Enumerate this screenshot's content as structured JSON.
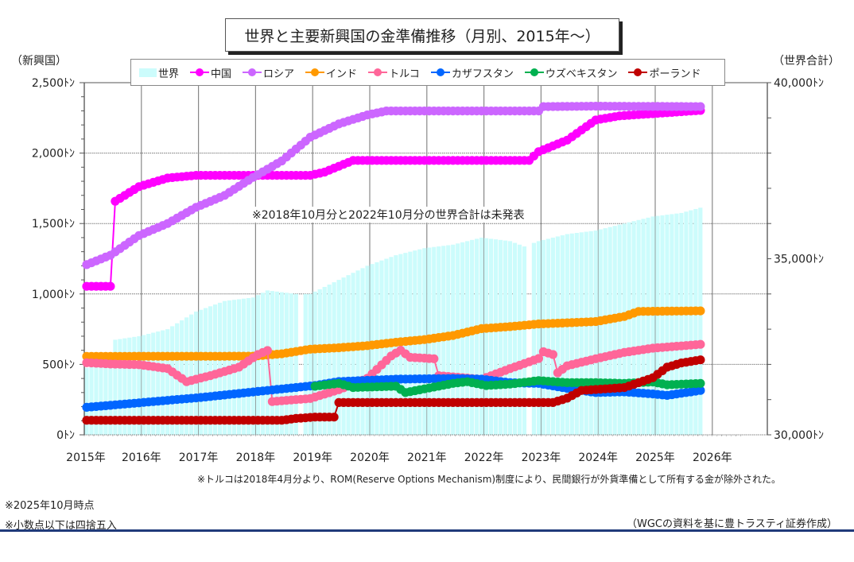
{
  "title": "世界と主要新興国の金準備推移（月別、2015年～）",
  "axis_caption_left": "（新興国）",
  "axis_caption_right": "（世界合計）",
  "annotation_gap": "※2018年10月分と2022年10月分の世界合計は未発表",
  "footnote_turkey": "※トルコは2018年4月分より、ROM(Reserve Options Mechanism)制度により、民間銀行が外貨準備として所有する金が除外された。",
  "footnote_date": "※2025年10月時点",
  "footnote_rounding": "※小数点以下は四捨五入",
  "source": "（WGCの資料を基に豊トラスティ証券作成）",
  "chart_data": {
    "type": "line",
    "title": "世界と主要新興国の金準備推移（月別、2015年～）",
    "xlabel": "",
    "ylabel": "（新興国）",
    "ylabel_right": "（世界合計）",
    "x_start": "2015-01",
    "x_end": "2025-10",
    "x_ticks": [
      "2015年",
      "2016年",
      "2017年",
      "2018年",
      "2019年",
      "2020年",
      "2021年",
      "2022年",
      "2023年",
      "2024年",
      "2025年",
      "2026年"
    ],
    "ylim": [
      0,
      2500
    ],
    "y_ticks": [
      "0ﾄﾝ",
      "500ﾄﾝ",
      "1,000ﾄﾝ",
      "1,500ﾄﾝ",
      "2,000ﾄﾝ",
      "2,500ﾄﾝ"
    ],
    "ylim_right": [
      30000,
      40000
    ],
    "y_ticks_right": [
      "30,000ﾄﾝ",
      "35,000ﾄﾝ",
      "40,000ﾄﾝ"
    ],
    "grid": true,
    "legend_position": "top",
    "world": {
      "name": "世界",
      "color": "#ccfcfc",
      "axis": "right",
      "type": "bar",
      "missing": [
        "2018-10",
        "2022-10"
      ],
      "keypoints": [
        [
          "2015-01",
          31900
        ],
        [
          "2015-06",
          32000
        ],
        [
          "2015-07",
          32700
        ],
        [
          "2015-12",
          32800
        ],
        [
          "2016-06",
          33000
        ],
        [
          "2016-12",
          33500
        ],
        [
          "2017-06",
          33800
        ],
        [
          "2017-12",
          33900
        ],
        [
          "2018-03",
          34100
        ],
        [
          "2018-09",
          34000
        ],
        [
          "2018-12",
          34000
        ],
        [
          "2019-06",
          34400
        ],
        [
          "2019-12",
          34800
        ],
        [
          "2020-06",
          35100
        ],
        [
          "2020-12",
          35300
        ],
        [
          "2021-06",
          35400
        ],
        [
          "2021-12",
          35600
        ],
        [
          "2022-06",
          35500
        ],
        [
          "2022-09",
          35350
        ],
        [
          "2022-12",
          35500
        ],
        [
          "2023-06",
          35700
        ],
        [
          "2023-12",
          35800
        ],
        [
          "2024-06",
          36000
        ],
        [
          "2024-12",
          36200
        ],
        [
          "2025-06",
          36300
        ],
        [
          "2025-10",
          36450
        ]
      ]
    },
    "series": [
      {
        "name": "中国",
        "color": "#ff00ff",
        "keypoints": [
          [
            "2015-01",
            1054
          ],
          [
            "2015-06",
            1054
          ],
          [
            "2015-07",
            1658
          ],
          [
            "2015-12",
            1762
          ],
          [
            "2016-06",
            1823
          ],
          [
            "2016-12",
            1842
          ],
          [
            "2018-12",
            1842
          ],
          [
            "2019-03",
            1865
          ],
          [
            "2019-09",
            1948
          ],
          [
            "2022-10",
            1948
          ],
          [
            "2022-12",
            2010
          ],
          [
            "2023-06",
            2092
          ],
          [
            "2023-12",
            2235
          ],
          [
            "2024-05",
            2264
          ],
          [
            "2024-12",
            2280
          ],
          [
            "2025-10",
            2303
          ]
        ]
      },
      {
        "name": "ロシア",
        "color": "#cc66ff",
        "keypoints": [
          [
            "2015-01",
            1208
          ],
          [
            "2015-06",
            1275
          ],
          [
            "2015-12",
            1415
          ],
          [
            "2016-06",
            1500
          ],
          [
            "2016-12",
            1615
          ],
          [
            "2017-06",
            1700
          ],
          [
            "2017-12",
            1828
          ],
          [
            "2018-06",
            1944
          ],
          [
            "2018-12",
            2113
          ],
          [
            "2019-06",
            2207
          ],
          [
            "2019-12",
            2271
          ],
          [
            "2020-04",
            2299
          ],
          [
            "2022-12",
            2299
          ],
          [
            "2023-01",
            2330
          ],
          [
            "2023-12",
            2333
          ],
          [
            "2025-10",
            2330
          ]
        ]
      },
      {
        "name": "インド",
        "color": "#ff9900",
        "keypoints": [
          [
            "2015-01",
            557
          ],
          [
            "2017-12",
            558
          ],
          [
            "2018-06",
            575
          ],
          [
            "2018-12",
            608
          ],
          [
            "2019-06",
            618
          ],
          [
            "2019-12",
            633
          ],
          [
            "2020-06",
            657
          ],
          [
            "2020-12",
            676
          ],
          [
            "2021-06",
            705
          ],
          [
            "2021-12",
            754
          ],
          [
            "2022-06",
            768
          ],
          [
            "2022-12",
            787
          ],
          [
            "2023-06",
            795
          ],
          [
            "2023-12",
            804
          ],
          [
            "2024-06",
            840
          ],
          [
            "2024-09",
            876
          ],
          [
            "2025-10",
            880
          ]
        ]
      },
      {
        "name": "トルコ",
        "color": "#ff6699",
        "keypoints": [
          [
            "2015-01",
            512
          ],
          [
            "2015-06",
            503
          ],
          [
            "2015-12",
            498
          ],
          [
            "2016-06",
            470
          ],
          [
            "2016-10",
            377
          ],
          [
            "2017-03",
            420
          ],
          [
            "2017-09",
            480
          ],
          [
            "2018-01",
            570
          ],
          [
            "2018-03",
            598
          ],
          [
            "2018-04",
            236
          ],
          [
            "2018-12",
            258
          ],
          [
            "2019-06",
            320
          ],
          [
            "2019-12",
            401
          ],
          [
            "2020-05",
            560
          ],
          [
            "2020-07",
            600
          ],
          [
            "2020-09",
            550
          ],
          [
            "2021-02",
            540
          ],
          [
            "2021-03",
            420
          ],
          [
            "2021-12",
            394
          ],
          [
            "2022-06",
            470
          ],
          [
            "2022-12",
            542
          ],
          [
            "2023-01",
            590
          ],
          [
            "2023-03",
            570
          ],
          [
            "2023-04",
            440
          ],
          [
            "2023-06",
            490
          ],
          [
            "2023-12",
            540
          ],
          [
            "2024-06",
            585
          ],
          [
            "2024-12",
            615
          ],
          [
            "2025-10",
            642
          ]
        ]
      },
      {
        "name": "カザフスタン",
        "color": "#0066ff",
        "keypoints": [
          [
            "2015-01",
            195
          ],
          [
            "2016-01",
            230
          ],
          [
            "2017-01",
            265
          ],
          [
            "2018-01",
            308
          ],
          [
            "2019-01",
            350
          ],
          [
            "2019-06",
            378
          ],
          [
            "2020-06",
            395
          ],
          [
            "2021-06",
            400
          ],
          [
            "2021-12",
            395
          ],
          [
            "2022-06",
            370
          ],
          [
            "2022-12",
            365
          ],
          [
            "2023-06",
            330
          ],
          [
            "2023-12",
            300
          ],
          [
            "2024-06",
            305
          ],
          [
            "2024-12",
            290
          ],
          [
            "2025-03",
            280
          ],
          [
            "2025-10",
            315
          ]
        ]
      },
      {
        "name": "ウズベキスタン",
        "color": "#00b050",
        "keypoints": [
          [
            "2019-01",
            345
          ],
          [
            "2019-06",
            365
          ],
          [
            "2019-09",
            336
          ],
          [
            "2020-06",
            345
          ],
          [
            "2020-08",
            300
          ],
          [
            "2021-06",
            365
          ],
          [
            "2021-09",
            377
          ],
          [
            "2022-01",
            350
          ],
          [
            "2022-06",
            360
          ],
          [
            "2022-12",
            385
          ],
          [
            "2023-06",
            370
          ],
          [
            "2023-12",
            370
          ],
          [
            "2024-06",
            365
          ],
          [
            "2024-12",
            375
          ],
          [
            "2025-03",
            355
          ],
          [
            "2025-10",
            365
          ]
        ]
      },
      {
        "name": "ポーランド",
        "color": "#c00000",
        "keypoints": [
          [
            "2015-01",
            103
          ],
          [
            "2018-06",
            103
          ],
          [
            "2018-09",
            116
          ],
          [
            "2019-01",
            126
          ],
          [
            "2019-05",
            126
          ],
          [
            "2019-06",
            229
          ],
          [
            "2023-03",
            229
          ],
          [
            "2023-06",
            260
          ],
          [
            "2023-09",
            315
          ],
          [
            "2024-06",
            335
          ],
          [
            "2024-12",
            405
          ],
          [
            "2025-03",
            480
          ],
          [
            "2025-06",
            510
          ],
          [
            "2025-10",
            532
          ]
        ]
      }
    ]
  }
}
